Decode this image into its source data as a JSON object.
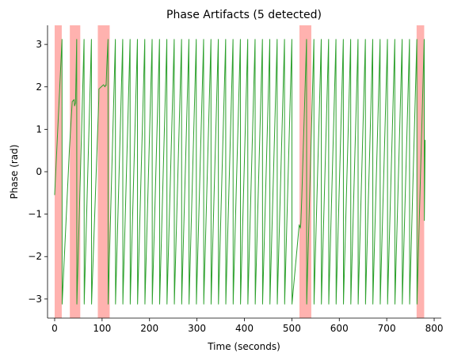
{
  "chart_data": {
    "type": "line",
    "title": "Phase Artifacts (5 detected)",
    "xlabel": "Time (seconds)",
    "ylabel": "Phase (rad)",
    "xlim": [
      -15,
      815
    ],
    "ylim": [
      -3.45,
      3.45
    ],
    "xticks": [
      0,
      100,
      200,
      300,
      400,
      500,
      600,
      700,
      800
    ],
    "yticks": [
      -3,
      -2,
      -1,
      0,
      1,
      2,
      3
    ],
    "grid": false,
    "legend": "none",
    "colors": {
      "line": "#2ca02c",
      "artifact_band": "#ff9f9b",
      "axis": "#000000",
      "background": "#ffffff"
    },
    "series": [
      {
        "wrapped_phase": true,
        "x": [
          0,
          15.5,
          15.8,
          31,
          37,
          41,
          42,
          44,
          46.5,
          46.8,
          62,
          62.3,
          77.5,
          77.8,
          93,
          93.3,
          103,
          106,
          108,
          108.5,
          110,
          112.5,
          112.8,
          128,
          128.3,
          143.5,
          143.8,
          159,
          159.3,
          174.5,
          174.8,
          190,
          190.3,
          205.5,
          205.8,
          221,
          221.3,
          236.5,
          236.8,
          252,
          252.3,
          267.5,
          267.8,
          283,
          283.3,
          298.5,
          298.8,
          314,
          314.3,
          329.5,
          329.8,
          345,
          345.3,
          360.5,
          360.8,
          376,
          376.3,
          391.5,
          391.8,
          407,
          407.3,
          422.5,
          422.8,
          438,
          438.3,
          453.5,
          453.8,
          469,
          469.3,
          484.5,
          484.8,
          500,
          500.3,
          515.5,
          515.8,
          517,
          518,
          519,
          521,
          531,
          531.3,
          546.5,
          546.8,
          562,
          562.3,
          577.5,
          577.8,
          593,
          593.3,
          608.5,
          608.8,
          624,
          624.3,
          639.5,
          639.8,
          655,
          655.3,
          670.5,
          670.8,
          686,
          686.3,
          701.5,
          701.8,
          717,
          717.3,
          732.5,
          732.8,
          748,
          748.3,
          763.5,
          763.8,
          779,
          779.3,
          781
        ],
        "y": [
          -0.55,
          3.12,
          -3.12,
          0.5,
          1.65,
          1.7,
          1.55,
          1.62,
          3.12,
          -3.12,
          3.12,
          -3.12,
          3.12,
          -3.12,
          1.7,
          1.95,
          2.05,
          2.0,
          2.05,
          2.03,
          2.5,
          3.12,
          -3.12,
          3.12,
          -3.12,
          3.12,
          -3.12,
          3.12,
          -3.12,
          3.12,
          -3.12,
          3.12,
          -3.12,
          3.12,
          -3.12,
          3.12,
          -3.12,
          3.12,
          -3.12,
          3.12,
          -3.12,
          3.12,
          -3.12,
          3.12,
          -3.12,
          3.12,
          -3.12,
          3.12,
          -3.12,
          3.12,
          -3.12,
          3.12,
          -3.12,
          3.12,
          -3.12,
          3.12,
          -3.12,
          3.12,
          -3.12,
          3.12,
          -3.12,
          3.12,
          -3.12,
          3.12,
          -3.12,
          3.12,
          -3.12,
          3.12,
          -3.12,
          3.12,
          -3.12,
          3.12,
          -3.12,
          -1.25,
          -1.3,
          -1.28,
          -1.33,
          -1.2,
          -0.6,
          3.12,
          -3.12,
          3.12,
          -3.12,
          3.12,
          -3.12,
          3.12,
          -3.12,
          3.12,
          -3.12,
          3.12,
          -3.12,
          3.12,
          -3.12,
          3.12,
          -3.12,
          3.12,
          -3.12,
          3.12,
          -3.12,
          3.12,
          -3.12,
          3.12,
          -3.12,
          3.12,
          -3.12,
          3.12,
          -3.12,
          3.12,
          -3.12,
          3.12,
          -3.12,
          3.12,
          -1.15,
          0.75
        ]
      }
    ],
    "artifact_regions": [
      [
        0,
        15
      ],
      [
        32,
        54
      ],
      [
        91,
        116
      ],
      [
        516,
        541
      ],
      [
        763,
        779
      ]
    ]
  }
}
